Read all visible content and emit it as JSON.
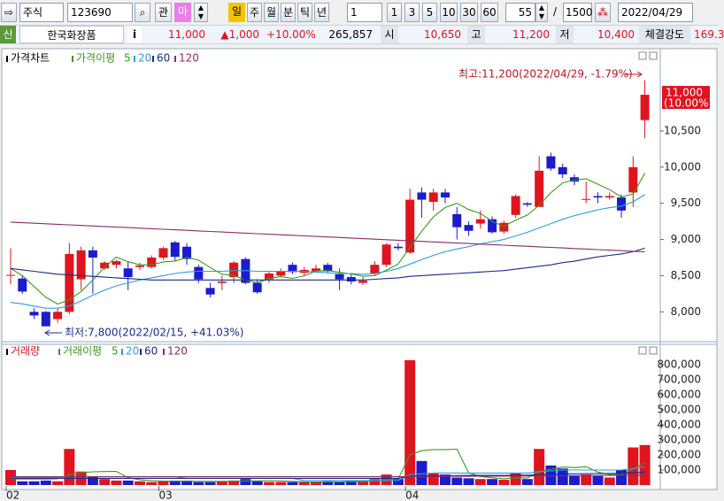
{
  "toolbar": {
    "market": "주식",
    "code": "123690",
    "buttons": [
      "관",
      "마"
    ],
    "periods": [
      "일",
      "주",
      "월",
      "분",
      "틱",
      "년"
    ],
    "interval": "1",
    "minutes": [
      "1",
      "3",
      "5",
      "10",
      "30",
      "60"
    ],
    "count": "55",
    "separator": "/",
    "total": "1500",
    "date": "2022/04/29"
  },
  "quote": {
    "badge": "신",
    "name": "한국화장품",
    "info": "i",
    "price": "11,000",
    "change": "▲1,000",
    "rate": "+10.00%",
    "volume": "265,857",
    "open_label": "시",
    "open": "10,650",
    "high_label": "고",
    "high": "11,200",
    "low_label": "저",
    "low": "10,400",
    "strength_label": "체결강도",
    "strength": "169.3"
  },
  "chart_data": [
    {
      "type": "candlestick",
      "title": "가격차트",
      "up_color": "#e0141e",
      "down_color": "#1c1ccc",
      "open": [
        8500,
        8460,
        8000,
        8000,
        7900,
        8000,
        8450,
        8850,
        8600,
        8650,
        8600,
        8620,
        8620,
        8750,
        8960,
        8900,
        8620,
        8330,
        8400,
        8480,
        8730,
        8400,
        8450,
        8500,
        8650,
        8540,
        8560,
        8650,
        8520,
        8480,
        8400,
        8530,
        8650,
        8900,
        8820,
        9650,
        9520,
        9650,
        9350,
        9200,
        9220,
        9280,
        9110,
        9340,
        9500,
        9450,
        10150,
        10000,
        9860,
        9550,
        9600,
        9580,
        9580,
        9650,
        10650
      ],
      "high": [
        8880,
        8500,
        8050,
        8010,
        8050,
        8950,
        8900,
        8900,
        8700,
        8720,
        8700,
        8680,
        8780,
        8900,
        8980,
        8950,
        8650,
        8400,
        8500,
        8700,
        8750,
        8450,
        8550,
        8600,
        8680,
        8620,
        8650,
        8680,
        8600,
        8520,
        8480,
        8700,
        8950,
        8950,
        9700,
        9720,
        9700,
        9700,
        9450,
        9250,
        9400,
        9320,
        9260,
        9620,
        9520,
        10150,
        10200,
        10050,
        9900,
        9800,
        9650,
        9650,
        9620,
        10150,
        11200
      ],
      "low": [
        8380,
        8250,
        7900,
        7800,
        7850,
        7970,
        8300,
        8250,
        8580,
        8600,
        8300,
        8580,
        8600,
        8720,
        8700,
        8650,
        8400,
        8200,
        8300,
        8400,
        8380,
        8250,
        8400,
        8480,
        8520,
        8500,
        8540,
        8540,
        8300,
        8380,
        8370,
        8500,
        8620,
        8850,
        8800,
        9300,
        9400,
        9500,
        9000,
        9050,
        9150,
        9080,
        9080,
        9300,
        9450,
        9450,
        9950,
        9850,
        9750,
        9500,
        9500,
        9550,
        9300,
        9450,
        10400
      ],
      "close": [
        8510,
        8280,
        7950,
        7800,
        8000,
        8800,
        8850,
        8750,
        8680,
        8700,
        8480,
        8640,
        8750,
        8880,
        8760,
        8730,
        8450,
        8240,
        8420,
        8680,
        8400,
        8270,
        8530,
        8560,
        8550,
        8580,
        8600,
        8560,
        8450,
        8420,
        8430,
        8650,
        8930,
        8880,
        9550,
        9550,
        9650,
        9580,
        9170,
        9120,
        9280,
        9100,
        9230,
        9600,
        9480,
        9950,
        9980,
        9900,
        9800,
        9560,
        9580,
        9600,
        9400,
        10000,
        11000
      ],
      "ma_label": "가격이평",
      "moving_averages": [
        {
          "name": "5",
          "color": "#3a9a1a",
          "values": [
            8600,
            8500,
            8350,
            8200,
            8108,
            8166,
            8280,
            8440,
            8616,
            8756,
            8692,
            8650,
            8650,
            8690,
            8702,
            8752,
            8714,
            8612,
            8520,
            8504,
            8438,
            8402,
            8460,
            8488,
            8462,
            8498,
            8564,
            8570,
            8548,
            8522,
            8492,
            8502,
            8576,
            8662,
            8888,
            9112,
            9312,
            9442,
            9500,
            9414,
            9360,
            9250,
            9180,
            9266,
            9338,
            9472,
            9648,
            9782,
            9822,
            9838,
            9764,
            9688,
            9588,
            9628,
            9916
          ]
        },
        {
          "name": "20",
          "color": "#2a9fe0",
          "values": [
            8130,
            8110,
            8080,
            8050,
            8050,
            8080,
            8150,
            8230,
            8300,
            8360,
            8400,
            8440,
            8470,
            8500,
            8530,
            8550,
            8560,
            8560,
            8560,
            8570,
            8570,
            8560,
            8560,
            8560,
            8560,
            8560,
            8550,
            8540,
            8530,
            8530,
            8520,
            8530,
            8560,
            8600,
            8660,
            8720,
            8780,
            8830,
            8870,
            8900,
            8940,
            8970,
            9000,
            9050,
            9100,
            9160,
            9220,
            9280,
            9330,
            9370,
            9410,
            9440,
            9460,
            9520,
            9620
          ]
        },
        {
          "name": "60",
          "color": "#1a2a8a",
          "values": [
            8600,
            8580,
            8560,
            8540,
            8520,
            8510,
            8500,
            8490,
            8480,
            8470,
            8460,
            8450,
            8440,
            8440,
            8440,
            8440,
            8440,
            8440,
            8440,
            8440,
            8440,
            8440,
            8440,
            8440,
            8440,
            8440,
            8440,
            8440,
            8440,
            8440,
            8440,
            8450,
            8460,
            8470,
            8490,
            8500,
            8510,
            8520,
            8530,
            8540,
            8550,
            8560,
            8570,
            8590,
            8610,
            8630,
            8650,
            8680,
            8700,
            8730,
            8760,
            8780,
            8800,
            8830,
            8880
          ]
        },
        {
          "name": "120",
          "color": "#8a2a6a",
          "values": [
            9240,
            9232,
            9225,
            9217,
            9210,
            9202,
            9194,
            9187,
            9179,
            9172,
            9164,
            9156,
            9149,
            9141,
            9134,
            9126,
            9118,
            9111,
            9103,
            9096,
            9088,
            9080,
            9073,
            9065,
            9058,
            9050,
            9042,
            9035,
            9027,
            9020,
            9012,
            9004,
            8997,
            8989,
            8982,
            8974,
            8966,
            8959,
            8951,
            8944,
            8936,
            8928,
            8921,
            8913,
            8906,
            8898,
            8890,
            8883,
            8875,
            8868,
            8860,
            8852,
            8845,
            8837,
            8830
          ]
        }
      ],
      "ylim": [
        7600,
        11600
      ],
      "yticks": [
        {
          "value": 8000,
          "label": "8,000"
        },
        {
          "value": 8500,
          "label": "8,500"
        },
        {
          "value": 9000,
          "label": "9,000"
        },
        {
          "value": 9500,
          "label": "9,500"
        },
        {
          "value": 10000,
          "label": "10,000"
        },
        {
          "value": 10500,
          "label": "10,500"
        }
      ],
      "current_price": {
        "value": 11000,
        "label": "11,000",
        "change_label": "(10.00%)"
      },
      "annotations": {
        "high": {
          "value": 11200,
          "text": "최고:11,200(2022/04/29, -1.79%)"
        },
        "low": {
          "value": 7800,
          "text": "최저:7,800(2022/02/15, +41.03%)"
        }
      }
    },
    {
      "type": "bar",
      "title": "거래량",
      "categories": [
        "02",
        null,
        null,
        null,
        null,
        null,
        null,
        null,
        null,
        null,
        null,
        null,
        null,
        "03",
        null,
        null,
        null,
        null,
        null,
        null,
        null,
        null,
        null,
        null,
        null,
        null,
        null,
        null,
        null,
        null,
        null,
        null,
        null,
        null,
        "04",
        null,
        null,
        null,
        null,
        null,
        null,
        null,
        null,
        null,
        null,
        null,
        null,
        null,
        null,
        null,
        null,
        null,
        null,
        null,
        null
      ],
      "values": [
        100000,
        25000,
        25000,
        30000,
        25000,
        240000,
        90000,
        55000,
        40000,
        30000,
        30000,
        25000,
        20000,
        25000,
        30000,
        30000,
        20000,
        20000,
        25000,
        30000,
        40000,
        25000,
        20000,
        20000,
        20000,
        20000,
        20000,
        25000,
        20000,
        30000,
        25000,
        40000,
        70000,
        40000,
        830000,
        160000,
        80000,
        70000,
        50000,
        45000,
        40000,
        40000,
        35000,
        80000,
        40000,
        240000,
        130000,
        110000,
        60000,
        70000,
        60000,
        50000,
        100000,
        250000,
        265857
      ],
      "ma_label": "거래이평",
      "moving_averages": [
        {
          "name": "5",
          "color": "#3a9a1a",
          "values": [
            40000,
            40000,
            40000,
            40000,
            41000,
            69000,
            82000,
            88000,
            90000,
            91000,
            49000,
            36000,
            29000,
            26000,
            26000,
            26000,
            25000,
            25000,
            25000,
            25000,
            27000,
            28000,
            28000,
            27000,
            25000,
            21000,
            20000,
            21000,
            21000,
            23000,
            24000,
            28000,
            37000,
            41000,
            201000,
            228000,
            236000,
            236000,
            238000,
            81000,
            57000,
            49000,
            42000,
            48000,
            47000,
            87000,
            105000,
            120000,
            116000,
            122000,
            86000,
            70000,
            68000,
            106000,
            149000
          ]
        },
        {
          "name": "20",
          "color": "#2a9fe0",
          "values": [
            50000,
            50000,
            50000,
            50000,
            50000,
            55000,
            55000,
            55000,
            55000,
            55000,
            55000,
            55000,
            55000,
            55000,
            55000,
            45000,
            45000,
            45000,
            45000,
            45000,
            45000,
            45000,
            45000,
            45000,
            45000,
            30000,
            30000,
            30000,
            30000,
            30000,
            30000,
            30000,
            30000,
            30000,
            70000,
            75000,
            80000,
            80000,
            80000,
            80000,
            80000,
            80000,
            80000,
            80000,
            80000,
            90000,
            95000,
            100000,
            100000,
            100000,
            100000,
            100000,
            100000,
            110000,
            120000
          ]
        },
        {
          "name": "60",
          "color": "#1a2a8a",
          "values": [
            45000,
            45000,
            45000,
            45000,
            45000,
            45000,
            45000,
            45000,
            45000,
            45000,
            45000,
            45000,
            45000,
            45000,
            45000,
            45000,
            45000,
            45000,
            45000,
            45000,
            45000,
            45000,
            45000,
            45000,
            45000,
            45000,
            45000,
            45000,
            45000,
            45000,
            45000,
            45000,
            45000,
            45000,
            58000,
            60000,
            61000,
            62000,
            63000,
            64000,
            64000,
            65000,
            65000,
            66000,
            66000,
            70000,
            72000,
            74000,
            75000,
            76000,
            77000,
            77000,
            78000,
            82000,
            86000
          ]
        },
        {
          "name": "120",
          "color": "#8a2a6a",
          "values": [
            55000,
            55000,
            55000,
            55000,
            55000,
            55000,
            55000,
            55000,
            55000,
            55000,
            55000,
            55000,
            55000,
            55000,
            55000,
            55000,
            55000,
            55000,
            55000,
            55000,
            55000,
            55000,
            55000,
            55000,
            55000,
            55000,
            55000,
            55000,
            55000,
            55000,
            55000,
            55000,
            55000,
            55000,
            56000,
            57000,
            57000,
            58000,
            58000,
            58000,
            59000,
            59000,
            59000,
            60000,
            60000,
            61000,
            62000,
            62000,
            63000,
            63000,
            64000,
            64000,
            65000,
            66000,
            67000
          ]
        }
      ],
      "ylim": [
        0,
        900000
      ],
      "yticks": [
        {
          "value": 100000,
          "label": "100,000"
        },
        {
          "value": 200000,
          "label": "200,000"
        },
        {
          "value": 300000,
          "label": "300,000"
        },
        {
          "value": 400000,
          "label": "400,000"
        },
        {
          "value": 500000,
          "label": "500,000"
        },
        {
          "value": 600000,
          "label": "600,000"
        },
        {
          "value": 700000,
          "label": "700,000"
        },
        {
          "value": 800000,
          "label": "800,000"
        }
      ]
    }
  ]
}
